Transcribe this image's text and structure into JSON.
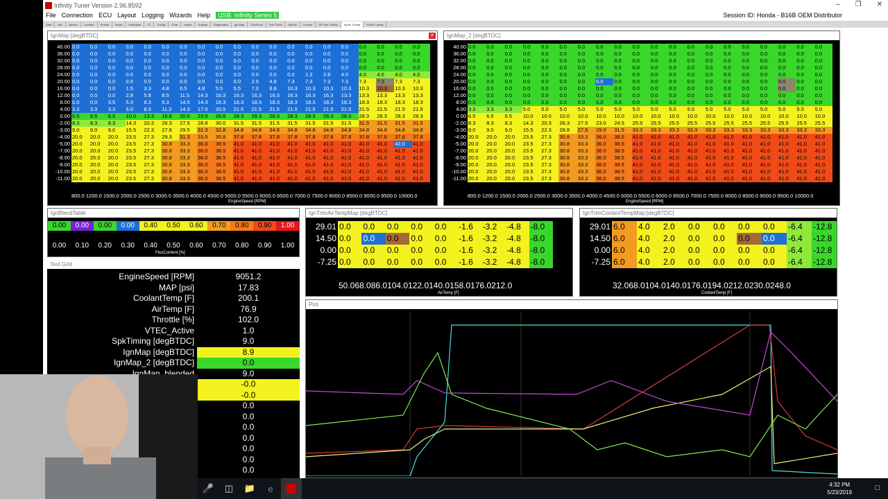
{
  "app": {
    "title": "Infinity Tuner Version 2.96.8592",
    "menu": [
      "File",
      "Connection",
      "ECU",
      "Layout",
      "Logging",
      "Wizards",
      "Help"
    ],
    "usb": "USB: Infinity Series 5",
    "session": "Session ID: Honda - B16B OEM Distributor",
    "tabs": [
      "Start",
      "Idle",
      "Injector",
      "Lambda",
      "Protect",
      "Boost",
      "IdleAdjust",
      "TC",
      "Tuning",
      "Gear",
      "Inputs",
      "Outputs",
      "Diagnostics",
      "Ign Map",
      "Cam/Fuel",
      "Fuel Trims",
      "Nitrous",
      "Launch",
      "VE Fuel Tuning",
      "Spark Tuning",
      "Knock Tuning"
    ],
    "active_tab": "Spark Tuning"
  },
  "ignmap": {
    "title": "IgnMap [degBTDC]",
    "ylabel": "MAP [psi]",
    "xlabel": "EngineSpeed [RPM]",
    "rows": [
      "40.00",
      "36.00",
      "32.00",
      "28.00",
      "24.00",
      "20.00",
      "16.00",
      "12.00",
      "8.00",
      "4.00",
      "0.00",
      "-2.00",
      "-3.00",
      "-4.00",
      "-5.00",
      "-7.00",
      "-8.00",
      "-9.00",
      "-10.00",
      "-11.00"
    ],
    "x_axis": "800.0 1200.0 1500.0 2000.0 2500.0 3000.0 3500.0 4000.0 4500.0 5000.0 5500.0 6000.0 6500.0 7000.0 7500.0 8000.0 8500.0 9000.0 9500.0 10000.0",
    "cells": [
      "0.0 0.0 0.0 0.0 0.0 0.0 0.0 0.0 0.0 0.0 0.0 0.0 0.0 0.0 0.0 0.0 0.0 0.0 0.0 0.0",
      "0.0 0.0 0.0 0.0 0.0 0.0 0.0 0.0 0.0 0.0 0.0 0.0 0.0 0.0 0.0 0.0 0.0 0.0 0.0 0.0",
      "0.0 0.0 0.0 0.0 0.0 0.0 0.0 0.0 0.0 0.0 0.0 0.0 0.0 0.0 0.0 0.0 0.0 0.0 0.0 0.0",
      "0.0 0.0 0.0 0.0 0.0 0.0 0.0 0.0 0.0 0.0 0.0 0.0 0.0 0.0 0.0 0.0 0.0 0.0 0.0 0.0",
      "0.0 0.0 0.0 0.0 0.0 0.0 0.0 0.0 0.0 0.0 0.0 0.0 0.0 1.3 2.8 4.0 4.0 4.0 4.0 4.0",
      "0.0 0.0 0.0 0.0 0.0 0.0 0.0 0.0 0.0 0.0 2.5 4.8 7.3 7.3 7.3 7.3 7.3 7.3 7.3 7.3",
      "0.0 0.0 0.0 1.5 3.3 4.8 6.5 4.8 5.5 5.5 7.0 8.8 10.3 10.3 10.3 10.3 10.3 10.3 10.3 10.3",
      "0.0 0.0 0.0 2.8 5.8 8.5 11.5 14.3 16.3 16.3 16.3 16.3 16.3 16.3 16.3 13.3 13.3 13.3 13.3 13.3",
      "0.0 0.0 3.5 5.3 8.3 9.3 14.5 14.3 16.3 16.3 18.3 18.3 18.3 18.3 18.3 18.3 18.3 18.3 18.3 18.3",
      "3.3 3.3 3.3 5.0 8.0 11.3 14.3 17.5 20.5 21.5 21.5 21.5 21.5 21.5 21.5 21.5 21.5 21.5 21.5 21.5",
      "6.5 6.5 6.5 10.0 13.3 16.8 20.0 23.5 26.8 28.3 28.3 28.3 28.3 28.3 28.3 28.3 28.3 28.3 28.3 28.3",
      "8.3 8.3 8.3 14.3 20.3 26.3 27.5 28.8 30.0 31.5 31.5 31.5 31.5 31.5 31.5 31.5 31.5 31.5 31.5 31.5",
      "9.0 9.0 9.0 15.5 22.3 27.8 29.5 31.3 32.8 34.8 34.8 34.8 34.8 34.8 34.8 34.8 34.8 34.8 34.8 34.8",
      "20.0 20.0 20.0 23.5 27.3 29.3 31.3 33.5 35.8 37.8 37.8 37.8 37.8 37.8 37.8 37.8 37.8 37.8 37.8 37.8",
      "20.0 20.0 20.0 23.5 27.3 30.8 33.3 36.0 38.5 41.0 41.0 41.0 41.0 41.0 41.0 41.0 41.0 41.0 42.0 41.0",
      "20.0 20.0 20.0 23.5 27.3 30.8 33.3 36.0 38.5 41.0 41.0 41.0 41.0 41.0 41.0 41.0 41.0 41.0 41.0 41.0",
      "20.0 20.0 20.0 23.5 27.3 30.8 33.3 36.0 38.5 41.0 41.0 41.0 41.0 41.0 41.0 41.0 41.0 41.0 41.0 41.0",
      "20.0 20.0 20.0 23.5 27.3 30.8 33.3 36.0 38.5 41.0 41.0 41.0 41.0 41.0 41.0 41.0 41.0 41.0 41.0 41.0",
      "20.0 20.0 20.0 23.5 27.3 30.8 33.3 36.0 38.5 41.0 41.0 41.0 41.0 41.0 41.0 41.0 41.0 41.0 41.0 41.0",
      "20.0 20.0 20.0 23.5 27.3 30.8 33.3 36.0 38.5 41.0 41.0 41.0 41.0 41.0 41.0 41.0 41.0 41.0 41.0 41.0"
    ],
    "colors": [
      "b b b b b b b b b b b b b b b b g g g g",
      "b b b b b b b b b b b b b b b b g g g g",
      "b b b b b b b b b b b b b b b b g g g g",
      "b b b b b b b b b b b b b b b b g g g g",
      "b b b b b b b b b b b b b b b b lg lg lg lg",
      "b b b b b b b b b b b b b b b b y gr y y",
      "b b b b b b b b b b b b b b b b y br y y",
      "b b b b b b b b b b b b b b b b y y y y",
      "b b b b b b b b b b b b b b b b y y y y",
      "b b b b b b b b b b b b b b b b y y y y",
      "g g g g g g g g g g g g g g g g y y y y",
      "lg lg lg y y y y y y y y y y y y y o o o o",
      "y y y y y y y o o o o o o o o o o o o o",
      "y y y y y y o o o or or or or or or or or or or or",
      "y y y y y o o or or r r r r r r r r r b r",
      "y y y y y o o or or r r r r r r r r r r r",
      "y y y y y o o or or r r r r r r r r r r r",
      "y y y y y o o or or r r r r r r r r r r r",
      "y y y y y o o or or r r r r r r r r r r r",
      "y y y y y o o or or r r r r r r r r r r r"
    ]
  },
  "ignmap2": {
    "title": "IgnMap_2 [degBTDC]",
    "ylabel": "MAP [psi]",
    "xlabel": "EngineSpeed [RPM]",
    "rows": [
      "40.00",
      "36.00",
      "32.00",
      "28.00",
      "24.00",
      "20.00",
      "16.00",
      "12.00",
      "8.00",
      "4.00",
      "0.00",
      "-2.00",
      "-3.00",
      "-4.00",
      "-5.00",
      "-7.00",
      "-8.00",
      "-9.00",
      "-10.00",
      "-11.00"
    ],
    "x_axis": "800.0 1200.0 1500.0 2000.0 2500.0 3000.0 3500.0 4000.0 4500.0 5000.0 5500.0 6000.0 6500.0 7000.0 7500.0 8000.0 8500.0 9000.0 9500.0 10000.0",
    "cells": [
      "0.0 0.0 0.0 0.0 0.0 0.0 0.0 0.0 0.0 0.0 0.0 0.0 0.0 0.0 0.0 0.0 0.0 0.0 0.0 0.0",
      "0.0 0.0 0.0 0.0 0.0 0.0 0.0 0.0 0.0 0.0 0.0 0.0 0.0 0.0 0.0 0.0 0.0 0.0 0.0 0.0",
      "0.0 0.0 0.0 0.0 0.0 0.0 0.0 0.0 0.0 0.0 0.0 0.0 0.0 0.0 0.0 0.0 0.0 0.0 0.0 0.0",
      "0.0 0.0 0.0 0.0 0.0 0.0 0.0 0.0 0.0 0.0 0.0 0.0 0.0 0.0 0.0 0.0 0.0 0.0 0.0 0.0",
      "0.0 0.0 0.0 0.0 0.0 0.0 0.0 0.0 0.0 0.0 0.0 0.0 0.0 0.0 0.0 0.0 0.0 0.0 0.0 0.0",
      "0.0 0.0 0.0 0.0 0.0 0.0 0.0 0.0 0.0 0.0 0.0 0.0 0.0 0.0 0.0 0.0 0.0 0.0 0.0 0.0",
      "0.0 0.0 0.0 0.0 0.0 0.0 0.0 0.0 0.0 0.0 0.0 0.0 0.0 0.0 0.0 0.0 0.0 0.0 0.0 0.0",
      "0.0 0.0 0.0 0.0 0.0 0.0 0.0 0.0 0.0 0.0 0.0 0.0 0.0 0.0 0.0 0.0 0.0 0.0 0.0 0.0",
      "0.0 0.0 0.0 0.0 0.0 0.0 0.0 0.0 0.0 0.0 0.0 0.0 0.0 0.0 0.0 0.0 0.0 0.0 0.0 0.0",
      "3.3 3.3 3.3 5.0 5.0 5.0 5.0 5.0 5.0 5.0 5.0 5.0 5.0 5.0 5.0 5.0 5.0 5.0 5.0 5.0",
      "6.5 6.5 6.5 10.0 10.0 10.0 10.0 10.0 10.0 10.0 10.0 10.0 10.0 10.0 10.0 10.0 10.0 10.0 10.0 10.0",
      "8.3 8.3 8.3 14.3 20.3 26.3 27.5 23.0 24.5 25.5 25.5 25.5 25.5 25.5 25.5 25.5 25.5 25.5 25.5 25.5",
      "9.0 9.0 9.0 15.5 22.3 28.8 27.5 29.0 31.5 33.3 33.3 33.3 33.3 33.3 33.3 33.3 33.3 33.3 33.3 33.3",
      "20.0 20.0 20.0 23.5 27.3 30.8 33.3 36.0 38.5 41.0 41.0 41.0 41.0 41.0 41.0 41.0 41.0 41.0 41.0 41.0",
      "20.0 20.0 20.0 23.5 27.3 30.8 33.3 36.0 38.5 41.0 41.0 41.0 41.0 41.0 41.0 41.0 41.0 41.0 41.0 41.0",
      "20.0 20.0 20.0 23.5 27.3 30.8 33.3 36.0 38.5 41.0 41.0 41.0 41.0 41.0 41.0 41.0 41.0 41.0 41.0 41.0",
      "20.0 20.0 20.0 23.5 27.3 30.8 33.3 36.0 38.5 41.0 41.0 41.0 41.0 41.0 41.0 41.0 41.0 41.0 41.0 41.0",
      "20.0 20.0 20.0 23.5 27.3 30.8 33.3 36.0 38.5 41.0 41.0 41.0 41.0 41.0 41.0 41.0 41.0 41.0 41.0 41.0",
      "20.0 20.0 20.0 23.5 27.3 30.8 33.3 36.0 38.5 41.0 41.0 41.0 41.0 41.0 41.0 41.0 41.0 41.0 41.0 41.0",
      "20.0 20.0 20.0 23.5 27.3 30.8 33.3 36.0 38.5 41.0 41.0 41.0 41.0 41.0 41.0 41.0 41.0 41.0 41.0 41.0"
    ],
    "colors": [
      "g g g g g g g g g g g g g g g g g g g g",
      "g g g g g g g g g g g g g g g g g g g g",
      "g g g g g g g g g g g g g g g g g g g g",
      "g g g g g g g g g g g g g g g g g g g g",
      "g g g g g g g g g g g g g g g g g g g g",
      "g g g g g g g b g g g g g g g g g gr g g",
      "g g g g g g g g g g g g g g g g g gr g g",
      "g g g g g g g g g g g g g g g g g g g g",
      "g g g g g g g g g g g g g g g g g g g g",
      "lg lg lg y y y y y y y y y y y y y y y y y",
      "y y y y y y y y y y y y y y y y y y y y",
      "y y y y y y y y y y y y y y y y y y y y",
      "y y y y y y o o o o o o o o o o o o o o",
      "y y y y y o o or or r r r r r r r r r r r",
      "y y y y y o o or or r r r r r r r r r r r",
      "y y y y y o o or or r r r r r r r r r r r",
      "y y y y y o o or or r r r r r r r r r r r",
      "y y y y y o o or or r r r r r r r r r r r",
      "y y y y y o o or or r r r r r r r r r r r",
      "y y y y y o o or or r r r r r r r r r r r"
    ]
  },
  "blend": {
    "title": "IgnBlendTable",
    "values": [
      "0.00",
      "0.00",
      "0.00",
      "0.00",
      "0.40",
      "0.50",
      "0.60",
      "0.70",
      "0.80",
      "0.90",
      "1.00"
    ],
    "colors": [
      "g",
      "#7b1fd9",
      "g",
      "b",
      "y",
      "y",
      "y",
      "o",
      "or",
      "r",
      "#e8141c"
    ],
    "axis": [
      "0.00",
      "0.10",
      "0.20",
      "0.30",
      "0.40",
      "0.50",
      "0.60",
      "0.70",
      "0.80",
      "0.90",
      "1.00"
    ],
    "xlabel": "FlexContent [%]"
  },
  "airtemp": {
    "title": "IgnTrimAirTempMap [degBTDC]",
    "ylabel": "MAP [psi]",
    "rows": [
      "29.01",
      "14.50",
      "0.00",
      "-7.25"
    ],
    "cells": [
      [
        "0.0",
        "0.0",
        "0.0",
        "0.0",
        "0.0",
        "-1.6",
        "-3.2",
        "-4.8",
        "-8.0"
      ],
      [
        "0.0",
        "0.0",
        "0.0",
        "0.0",
        "0.0",
        "-1.6",
        "-3.2",
        "-4.8",
        "-8.0"
      ],
      [
        "0.0",
        "0.0",
        "0.0",
        "0.0",
        "0.0",
        "-1.6",
        "-3.2",
        "-4.8",
        "-8.0"
      ],
      [
        "0.0",
        "0.0",
        "0.0",
        "0.0",
        "0.0",
        "-1.6",
        "-3.2",
        "-4.8",
        "-8.0"
      ]
    ],
    "colors": [
      [
        "y",
        "y",
        "y",
        "y",
        "y",
        "y",
        "y",
        "y",
        "g"
      ],
      [
        "y",
        "b",
        "br",
        "y",
        "y",
        "y",
        "y",
        "y",
        "g"
      ],
      [
        "y",
        "y",
        "y",
        "y",
        "y",
        "y",
        "y",
        "y",
        "g"
      ],
      [
        "y",
        "y",
        "y",
        "y",
        "y",
        "y",
        "y",
        "y",
        "g"
      ]
    ],
    "axis": "50.068.086.0104.0122.0140.0158.0176.0212.0",
    "xlabel": "AirTemp [F]"
  },
  "coolant": {
    "title": "IgnTrimCoolantTempMap [degBTDC]",
    "ylabel": "MAP [psi]",
    "rows": [
      "29.01",
      "14.50",
      "0.00",
      "-7.25"
    ],
    "cells": [
      [
        "6.0",
        "4.0",
        "2.0",
        "0.0",
        "0.0",
        "0.0",
        "0.0",
        "-6.4",
        "-12.8"
      ],
      [
        "6.0",
        "4.0",
        "2.0",
        "0.0",
        "0.0",
        "0.0",
        "0.0",
        "-6.4",
        "-12.8"
      ],
      [
        "6.0",
        "4.0",
        "2.0",
        "0.0",
        "0.0",
        "0.0",
        "0.0",
        "-6.4",
        "-12.8"
      ],
      [
        "6.0",
        "4.0",
        "2.0",
        "0.0",
        "0.0",
        "0.0",
        "0.0",
        "-6.4",
        "-12.8"
      ]
    ],
    "colors": [
      [
        "o",
        "y",
        "y",
        "y",
        "y",
        "y",
        "y",
        "lg",
        "g"
      ],
      [
        "o",
        "y",
        "y",
        "y",
        "y",
        "br",
        "b",
        "lg",
        "g"
      ],
      [
        "o",
        "y",
        "y",
        "y",
        "y",
        "y",
        "y",
        "lg",
        "g"
      ],
      [
        "o",
        "y",
        "y",
        "y",
        "y",
        "y",
        "y",
        "lg",
        "g"
      ]
    ],
    "axis": "32.068.0104.0140.0176.0194.0212.0230.0248.0",
    "xlabel": "CoolantTemp [F]"
  },
  "textgrid": {
    "title": "Text Grid",
    "rows": [
      {
        "k": "EngineSpeed [RPM]",
        "v": "9051.2",
        "c": ""
      },
      {
        "k": "MAP [psi]",
        "v": "17.83",
        "c": ""
      },
      {
        "k": "CoolantTemp [F]",
        "v": "200.1",
        "c": ""
      },
      {
        "k": "AirTemp [F]",
        "v": "76.9",
        "c": ""
      },
      {
        "k": "Throttle [%]",
        "v": "102.0",
        "c": ""
      },
      {
        "k": "VTEC_Active",
        "v": "1.0",
        "c": ""
      },
      {
        "k": "SpkTiming [degBTDC]",
        "v": "9.0",
        "c": ""
      },
      {
        "k": "IgnMap [degBTDC]",
        "v": "8.9",
        "c": "y"
      },
      {
        "k": "IgnMap_2 [degBTDC]",
        "v": "0.0",
        "c": "g"
      },
      {
        "k": "IgnMap_blended",
        "v": "9.0",
        "c": ""
      },
      {
        "k": "",
        "v": "-0.0",
        "c": "y"
      },
      {
        "k": "",
        "v": "-0.0",
        "c": "y"
      },
      {
        "k": "",
        "v": "0.0",
        "c": ""
      },
      {
        "k": "",
        "v": "0.0",
        "c": ""
      },
      {
        "k": "",
        "v": "0.0",
        "c": ""
      },
      {
        "k": "",
        "v": "0.0",
        "c": ""
      },
      {
        "k": "",
        "v": "0.0",
        "c": ""
      },
      {
        "k": "",
        "v": "0.0",
        "c": ""
      },
      {
        "k": "",
        "v": "0.0",
        "c": ""
      }
    ]
  },
  "plot": {
    "title": "Plot",
    "series_colors": [
      "#4fe0e0",
      "#d63c3c",
      "#f0f07a",
      "#c64ad8",
      "#7ef04a"
    ]
  },
  "taskbar": {
    "time": "4:32 PM",
    "date": "5/23/2019"
  }
}
